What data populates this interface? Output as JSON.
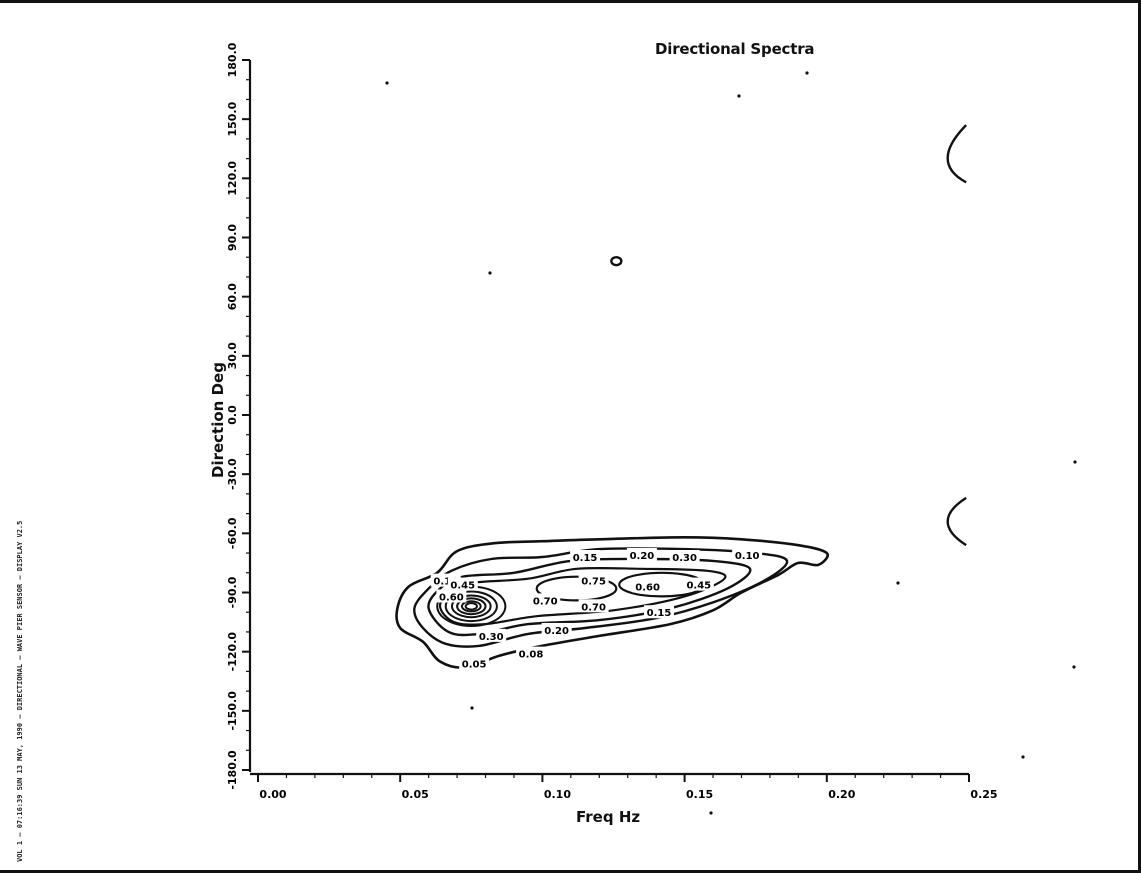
{
  "chart_data": {
    "type": "contour",
    "title": "Directional Spectra",
    "xlabel": "Freq Hz",
    "ylabel": "Direction Deg",
    "xlim": [
      0.0,
      0.25
    ],
    "ylim": [
      -180.0,
      180.0
    ],
    "x_ticks": [
      "0.00",
      "0.05",
      "0.10",
      "0.15",
      "0.20",
      "0.25"
    ],
    "y_ticks": [
      "-180.0",
      "-150.0",
      "-120.0",
      "-90.0",
      "-60.0",
      "-30.0",
      "0.0",
      "30.0",
      "60.0",
      "90.0",
      "120.0",
      "150.0",
      "180.0"
    ],
    "contour_levels": [
      "0.05",
      "0.10",
      "0.15",
      "0.20",
      "0.30",
      "0.45",
      "0.60",
      "0.70",
      "0.75"
    ],
    "peak": {
      "freq_hz": 0.075,
      "direction_deg": -97
    },
    "contour_labels": [
      {
        "text": "0.10",
        "x": 0.066,
        "y": -84
      },
      {
        "text": "0.60",
        "x": 0.068,
        "y": -92
      },
      {
        "text": "0.45",
        "x": 0.072,
        "y": -86
      },
      {
        "text": "0.15",
        "x": 0.115,
        "y": -72
      },
      {
        "text": "0.20",
        "x": 0.135,
        "y": -71
      },
      {
        "text": "0.30",
        "x": 0.15,
        "y": -72
      },
      {
        "text": "0.10",
        "x": 0.172,
        "y": -71
      },
      {
        "text": "0.75",
        "x": 0.118,
        "y": -84
      },
      {
        "text": "0.70",
        "x": 0.101,
        "y": -94
      },
      {
        "text": "0.70",
        "x": 0.118,
        "y": -97
      },
      {
        "text": "0.60",
        "x": 0.137,
        "y": -87
      },
      {
        "text": "0.45",
        "x": 0.155,
        "y": -86
      },
      {
        "text": "0.15",
        "x": 0.141,
        "y": -100
      },
      {
        "text": "0.20",
        "x": 0.105,
        "y": -109
      },
      {
        "text": "0.30",
        "x": 0.082,
        "y": -112
      },
      {
        "text": "0.08",
        "x": 0.096,
        "y": -121
      },
      {
        "text": "0.05",
        "x": 0.076,
        "y": -126
      }
    ],
    "grid": false,
    "legend": "none"
  },
  "side_note": "VOL 1 — 07:16:39 SUN 13 MAY, 1990 — DIRECTIONAL — WAVE PIER SENSOR — DISPLAY V2.5"
}
